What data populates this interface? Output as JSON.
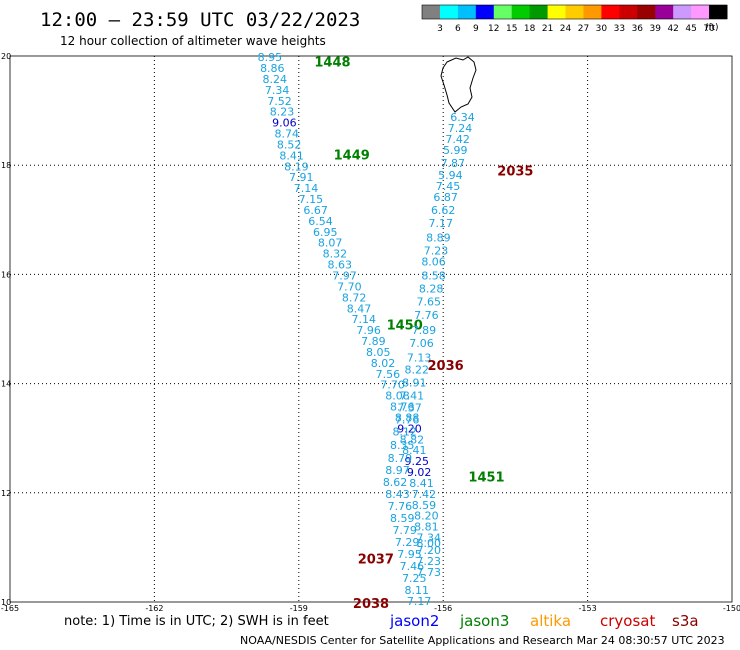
{
  "header": {
    "title": "12:00 – 23:59 UTC 03/22/2023",
    "subtitle": "12 hour collection of altimeter wave heights"
  },
  "colorbar": {
    "unit": "(ft)",
    "colors": [
      "#808080",
      "#00ffff",
      "#00bfff",
      "#0000ff",
      "#66ff66",
      "#00cc00",
      "#009900",
      "#ffff00",
      "#ffcc00",
      "#ff9900",
      "#ff0000",
      "#cc0000",
      "#990000",
      "#990099",
      "#cc99ff",
      "#ff99ff",
      "#000000"
    ],
    "ticks": [
      "3",
      "6",
      "9",
      "12",
      "15",
      "18",
      "21",
      "24",
      "27",
      "30",
      "33",
      "36",
      "39",
      "42",
      "45",
      "70"
    ]
  },
  "footer": {
    "note": "note: 1) Time is in UTC; 2) SWH is in feet",
    "credit": "NOAA/NESDIS Center for Satellite Applications and Research   Mar 24 08:30:57 UTC 2023",
    "satellites": [
      {
        "name": "jason2",
        "color": "#0000ff"
      },
      {
        "name": "jason3",
        "color": "#008000"
      },
      {
        "name": "altika",
        "color": "#ff9900"
      },
      {
        "name": "cryosat",
        "color": "#cc0000"
      },
      {
        "name": "s3a",
        "color": "#880000"
      }
    ]
  },
  "chart_data": {
    "type": "scatter",
    "xlim": [
      -165,
      -150
    ],
    "ylim": [
      10,
      20
    ],
    "xticks": [
      "-165",
      "-162",
      "-159",
      "-156",
      "-153",
      "-150"
    ],
    "yticks": [
      "10",
      "12",
      "14",
      "16",
      "18",
      "20"
    ],
    "grid": true,
    "tracks": [
      {
        "pass": "1448",
        "pass_color": "#008000",
        "pass_label": {
          "lon": -158.3,
          "lat": 19.9
        },
        "points": [
          {
            "lon": -159.6,
            "lat": 19.98,
            "v": "8.95"
          },
          {
            "lon": -159.55,
            "lat": 19.78,
            "v": "8.86"
          },
          {
            "lon": -159.5,
            "lat": 19.58,
            "v": "8.24"
          },
          {
            "lon": -159.45,
            "lat": 19.38,
            "v": "7.34"
          },
          {
            "lon": -159.4,
            "lat": 19.18,
            "v": "7.52"
          },
          {
            "lon": -159.35,
            "lat": 18.98,
            "v": "8.23"
          },
          {
            "lon": -159.3,
            "lat": 18.78,
            "v": "9.06",
            "c": "#0000cc"
          },
          {
            "lon": -159.25,
            "lat": 18.58,
            "v": "8.74"
          },
          {
            "lon": -159.2,
            "lat": 18.38,
            "v": "8.52"
          },
          {
            "lon": -159.15,
            "lat": 18.18,
            "v": "8.41"
          }
        ]
      },
      {
        "pass": "1449",
        "pass_color": "#008000",
        "pass_label": {
          "lon": -157.9,
          "lat": 18.2
        },
        "points": [
          {
            "lon": -159.05,
            "lat": 17.98,
            "v": "8.19"
          },
          {
            "lon": -158.95,
            "lat": 17.78,
            "v": "7.91"
          },
          {
            "lon": -158.85,
            "lat": 17.58,
            "v": "7.14"
          },
          {
            "lon": -158.75,
            "lat": 17.38,
            "v": "7.15"
          },
          {
            "lon": -158.65,
            "lat": 17.18,
            "v": "6.67"
          },
          {
            "lon": -158.55,
            "lat": 16.98,
            "v": "6.54"
          },
          {
            "lon": -158.45,
            "lat": 16.78,
            "v": "6.95"
          },
          {
            "lon": -158.35,
            "lat": 16.58,
            "v": "8.07"
          },
          {
            "lon": -158.25,
            "lat": 16.38,
            "v": "8.32"
          },
          {
            "lon": -158.15,
            "lat": 16.18,
            "v": "8.63"
          },
          {
            "lon": -158.05,
            "lat": 15.98,
            "v": "7.97"
          },
          {
            "lon": -157.95,
            "lat": 15.78,
            "v": "7.70"
          },
          {
            "lon": -157.85,
            "lat": 15.58,
            "v": "8.72"
          },
          {
            "lon": -157.75,
            "lat": 15.38,
            "v": "8.47"
          },
          {
            "lon": -157.65,
            "lat": 15.18,
            "v": "7.14"
          }
        ]
      },
      {
        "pass": "1450",
        "pass_color": "#008000",
        "pass_label": {
          "lon": -156.8,
          "lat": 15.08
        },
        "points": [
          {
            "lon": -157.55,
            "lat": 14.98,
            "v": "7.96"
          },
          {
            "lon": -157.45,
            "lat": 14.78,
            "v": "7.89"
          },
          {
            "lon": -157.35,
            "lat": 14.58,
            "v": "8.05"
          },
          {
            "lon": -157.25,
            "lat": 14.38,
            "v": "8.02"
          },
          {
            "lon": -157.15,
            "lat": 14.18,
            "v": "7.56"
          },
          {
            "lon": -157.05,
            "lat": 13.98,
            "v": "7.70"
          },
          {
            "lon": -156.95,
            "lat": 13.78,
            "v": "8.08"
          },
          {
            "lon": -156.85,
            "lat": 13.58,
            "v": "8.76"
          },
          {
            "lon": -156.75,
            "lat": 13.38,
            "v": "8.88"
          },
          {
            "lon": -156.7,
            "lat": 13.18,
            "v": "9.20",
            "c": "#0000cc"
          },
          {
            "lon": -156.65,
            "lat": 12.98,
            "v": "8.82"
          },
          {
            "lon": -156.6,
            "lat": 12.78,
            "v": "8.41"
          },
          {
            "lon": -156.55,
            "lat": 12.58,
            "v": "9.25",
            "c": "#0000cc"
          },
          {
            "lon": -156.5,
            "lat": 12.38,
            "v": "9.02",
            "c": "#0000cc"
          },
          {
            "lon": -156.45,
            "lat": 12.18,
            "v": "8.41"
          }
        ]
      },
      {
        "pass": "1451",
        "pass_color": "#008000",
        "pass_label": {
          "lon": -155.1,
          "lat": 12.3
        },
        "points": [
          {
            "lon": -156.4,
            "lat": 11.98,
            "v": "7.42"
          },
          {
            "lon": -156.4,
            "lat": 11.78,
            "v": "8.59"
          },
          {
            "lon": -156.35,
            "lat": 11.58,
            "v": "8.20"
          },
          {
            "lon": -156.35,
            "lat": 11.38,
            "v": "8.81"
          },
          {
            "lon": -156.3,
            "lat": 11.18,
            "v": "7.34"
          },
          {
            "lon": -156.3,
            "lat": 11.08,
            "v": "8.00"
          },
          {
            "lon": -156.3,
            "lat": 10.95,
            "v": "7.20"
          },
          {
            "lon": -156.3,
            "lat": 10.75,
            "v": "7.23"
          },
          {
            "lon": -156.3,
            "lat": 10.55,
            "v": "7.73"
          }
        ]
      },
      {
        "pass": "2035",
        "pass_color": "#880000",
        "pass_label": {
          "lon": -154.5,
          "lat": 17.9
        },
        "points": [
          {
            "lon": -155.6,
            "lat": 18.88,
            "v": "6.34"
          },
          {
            "lon": -155.65,
            "lat": 18.68,
            "v": "7.24"
          },
          {
            "lon": -155.7,
            "lat": 18.48,
            "v": "7.42"
          },
          {
            "lon": -155.75,
            "lat": 18.28,
            "v": "5.99"
          },
          {
            "lon": -155.8,
            "lat": 18.04,
            "v": "7.87"
          },
          {
            "lon": -155.85,
            "lat": 17.82,
            "v": "5.94"
          },
          {
            "lon": -155.9,
            "lat": 17.62,
            "v": "7.45"
          },
          {
            "lon": -155.95,
            "lat": 17.42,
            "v": "6.87"
          },
          {
            "lon": -156.0,
            "lat": 17.18,
            "v": "6.62"
          },
          {
            "lon": -156.05,
            "lat": 16.94,
            "v": "7.17"
          },
          {
            "lon": -156.1,
            "lat": 16.68,
            "v": "8.89"
          },
          {
            "lon": -156.15,
            "lat": 16.44,
            "v": "7.23"
          },
          {
            "lon": -156.2,
            "lat": 16.24,
            "v": "8.06"
          }
        ]
      },
      {
        "pass": "2036",
        "pass_color": "#880000",
        "pass_label": {
          "lon": -155.95,
          "lat": 14.34
        },
        "points": [
          {
            "lon": -156.2,
            "lat": 15.98,
            "v": "8.58"
          },
          {
            "lon": -156.25,
            "lat": 15.74,
            "v": "8.28"
          },
          {
            "lon": -156.3,
            "lat": 15.5,
            "v": "7.65"
          },
          {
            "lon": -156.35,
            "lat": 15.26,
            "v": "7.76"
          },
          {
            "lon": -156.4,
            "lat": 14.98,
            "v": "7.89"
          },
          {
            "lon": -156.45,
            "lat": 14.74,
            "v": "7.06"
          },
          {
            "lon": -156.5,
            "lat": 14.48,
            "v": "7.13"
          },
          {
            "lon": -156.55,
            "lat": 14.26,
            "v": "8.22"
          },
          {
            "lon": -156.6,
            "lat": 14.02,
            "v": "8.91"
          },
          {
            "lon": -156.65,
            "lat": 13.78,
            "v": "7.41"
          },
          {
            "lon": -156.7,
            "lat": 13.56,
            "v": "7.37"
          },
          {
            "lon": -156.75,
            "lat": 13.34,
            "v": "7.76"
          },
          {
            "lon": -156.8,
            "lat": 13.12,
            "v": "8.12"
          },
          {
            "lon": -156.85,
            "lat": 12.88,
            "v": "8.35"
          },
          {
            "lon": -156.9,
            "lat": 12.64,
            "v": "8.79"
          },
          {
            "lon": -156.95,
            "lat": 12.42,
            "v": "8.97"
          },
          {
            "lon": -157.0,
            "lat": 12.2,
            "v": "8.62"
          }
        ]
      },
      {
        "pass": "2037",
        "pass_color": "#880000",
        "pass_label": {
          "lon": -157.4,
          "lat": 10.8
        },
        "points": [
          {
            "lon": -156.95,
            "lat": 11.98,
            "v": "8.43"
          },
          {
            "lon": -156.9,
            "lat": 11.76,
            "v": "7.76"
          },
          {
            "lon": -156.85,
            "lat": 11.54,
            "v": "8.59"
          },
          {
            "lon": -156.8,
            "lat": 11.32,
            "v": "7.79"
          },
          {
            "lon": -156.75,
            "lat": 11.1,
            "v": "7.29"
          },
          {
            "lon": -156.7,
            "lat": 10.88,
            "v": "7.95"
          },
          {
            "lon": -156.65,
            "lat": 10.66,
            "v": "7.46"
          },
          {
            "lon": -156.6,
            "lat": 10.44,
            "v": "7.25"
          },
          {
            "lon": -156.55,
            "lat": 10.22,
            "v": "8.11"
          },
          {
            "lon": -156.5,
            "lat": 10.02,
            "v": "7.17"
          }
        ]
      },
      {
        "pass": "2038",
        "pass_color": "#880000",
        "pass_label": {
          "lon": -157.5,
          "lat": 9.98
        },
        "points": []
      }
    ]
  }
}
